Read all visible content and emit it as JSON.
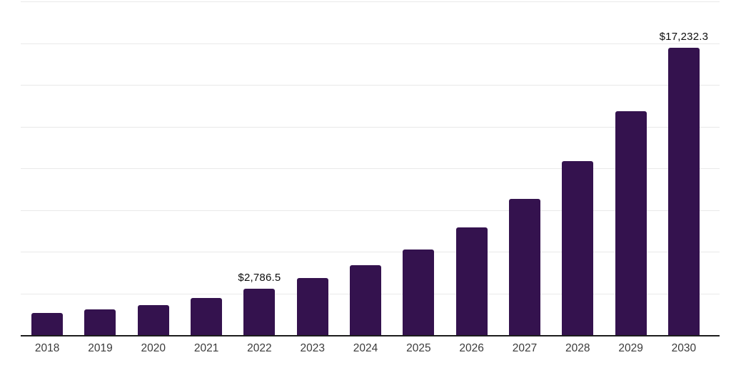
{
  "chart": {
    "background_color": "#ffffff",
    "bar_color": "#34124E",
    "axis_line_color": "#1c1c1c",
    "gridline_color": "#e9e9e9",
    "tick_label_color": "#3b3b3b",
    "data_label_color": "#0d0d0d"
  },
  "chart_data": {
    "type": "bar",
    "title": "",
    "xlabel": "",
    "ylabel": "",
    "categories": [
      "2018",
      "2019",
      "2020",
      "2021",
      "2022",
      "2023",
      "2024",
      "2025",
      "2026",
      "2027",
      "2028",
      "2029",
      "2030"
    ],
    "values": [
      1315,
      1530,
      1790,
      2215,
      2786.5,
      3400,
      4175,
      5150,
      6465,
      8180,
      10410,
      13415,
      17232.3
    ],
    "data_labels": [
      null,
      null,
      null,
      null,
      "$2,786.5",
      null,
      null,
      null,
      null,
      null,
      null,
      null,
      "$17,232.3"
    ],
    "ylim": [
      0,
      20000
    ],
    "gridline_step": 2500,
    "grid": "horizontal",
    "legend": "none",
    "y_axis_tick_labels": "hidden",
    "currency_unit": "$"
  }
}
